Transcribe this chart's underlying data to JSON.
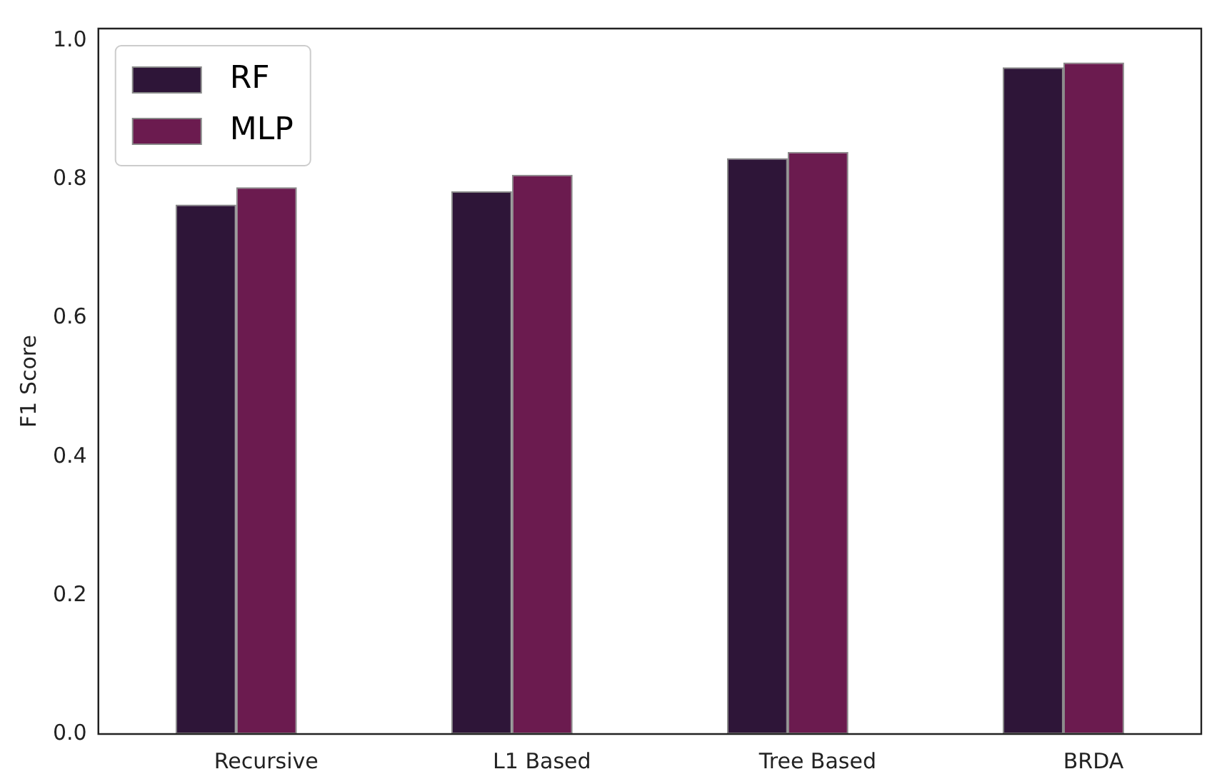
{
  "chart_data": {
    "type": "bar",
    "ylabel": "F1 Score",
    "categories": [
      "Recursive",
      "L1 Based",
      "Tree Based",
      "BRDA"
    ],
    "series": [
      {
        "name": "RF",
        "color": "#2e1538",
        "values": [
          0.764,
          0.783,
          0.831,
          0.962
        ]
      },
      {
        "name": "MLP",
        "color": "#6b1b4f",
        "values": [
          0.789,
          0.807,
          0.84,
          0.969
        ]
      }
    ],
    "ylim": [
      0,
      1.018
    ],
    "yticks": [
      {
        "value": 0,
        "label": "0.0"
      },
      0.2,
      0.4,
      0.6,
      0.8,
      {
        "value": 1,
        "label": "1.0"
      }
    ],
    "grid": false,
    "legend": "top left"
  }
}
